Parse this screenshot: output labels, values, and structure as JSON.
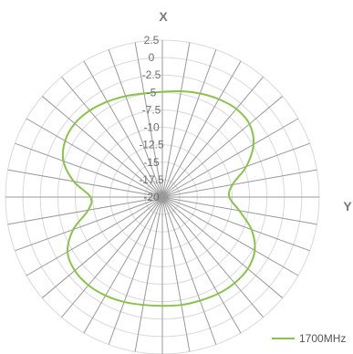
{
  "chart_data": {
    "type": "line",
    "subtype": "polar-radar",
    "axis_x_title": "X",
    "axis_y_title": "Y",
    "radial_ticks": [
      "2.5",
      "0",
      "-2.5",
      "-5",
      "-7.5",
      "-10",
      "-12.5",
      "-15",
      "-17.5",
      "-20"
    ],
    "rlim": [
      -20,
      2.5
    ],
    "spoke_count": 36,
    "grid": true,
    "legend_position": "bottom-right",
    "series": [
      {
        "name": "1700MHz",
        "color": "#8bc34a",
        "theta": [
          0,
          10,
          20,
          30,
          40,
          50,
          60,
          70,
          80,
          90,
          100,
          110,
          120,
          130,
          140,
          150,
          160,
          170,
          180,
          190,
          200,
          210,
          220,
          230,
          240,
          250,
          260,
          270,
          280,
          290,
          300,
          310,
          320,
          330,
          340,
          350
        ],
        "values": [
          -4.9,
          -4.6,
          -4.2,
          -3.8,
          -3.5,
          -3.7,
          -4.9,
          -7.2,
          -9.8,
          -10.4,
          -8.8,
          -6.4,
          -4.7,
          -4.0,
          -3.9,
          -4.0,
          -4.2,
          -4.3,
          -4.4,
          -4.3,
          -4.0,
          -3.7,
          -3.5,
          -3.6,
          -4.3,
          -6.4,
          -9.2,
          -9.7,
          -7.1,
          -4.9,
          -3.9,
          -3.6,
          -3.8,
          -4.2,
          -4.6,
          -4.9
        ]
      }
    ]
  }
}
